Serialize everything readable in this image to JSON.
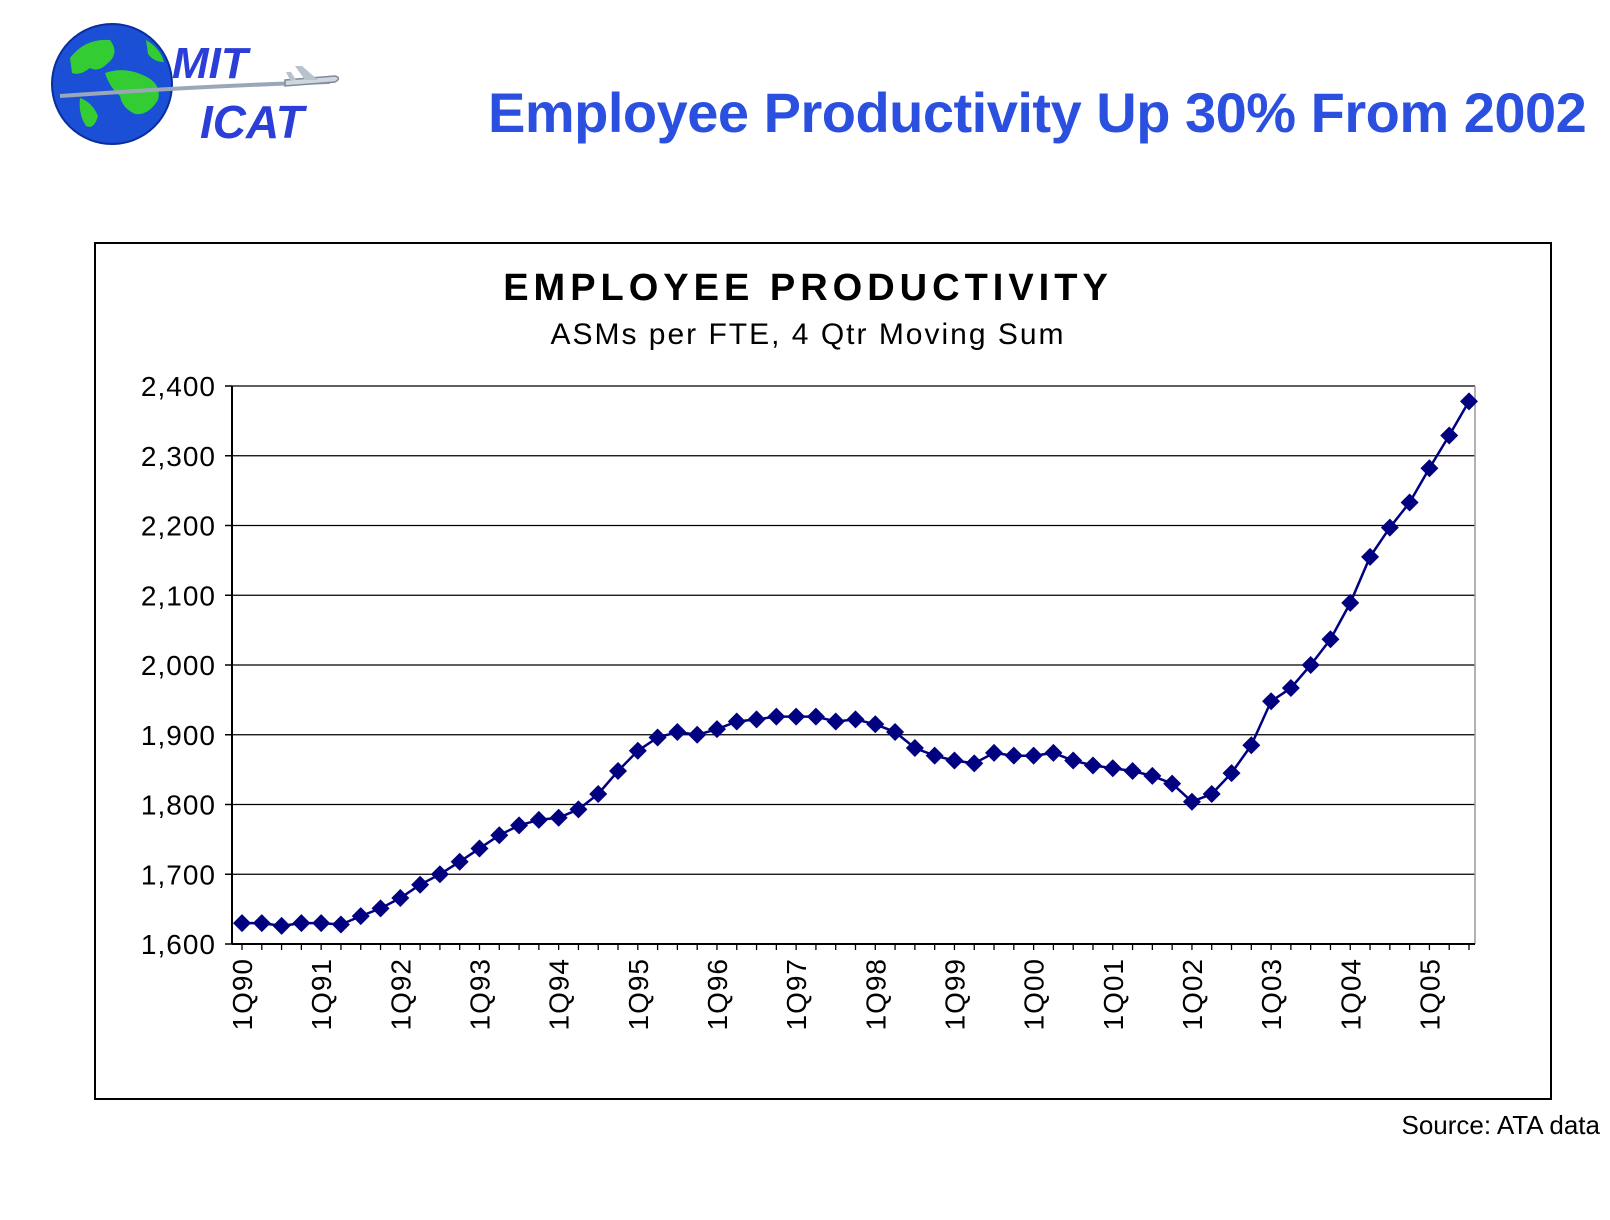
{
  "header": {
    "title": "Employee Productivity Up 30% From 2002",
    "logo_line1": "MIT",
    "logo_line2": "ICAT"
  },
  "source": "Source: ATA data",
  "colors": {
    "title_blue": "#2b50e0",
    "series": "#000080",
    "logo_text": "#2b3fd8",
    "globe_water": "#1a4fd6",
    "globe_land": "#33cc33"
  },
  "chart_data": {
    "type": "line",
    "title": "EMPLOYEE PRODUCTIVITY",
    "subtitle": "ASMs per FTE, 4 Qtr Moving Sum",
    "ylim": [
      1600,
      2400
    ],
    "yticks": [
      1600,
      1700,
      1800,
      1900,
      2000,
      2100,
      2200,
      2300,
      2400
    ],
    "ytick_labels": [
      "1,600",
      "1,700",
      "1,800",
      "1,900",
      "2,000",
      "2,100",
      "2,200",
      "2,300",
      "2,400"
    ],
    "xtick_labels": [
      "1Q90",
      "1Q91",
      "1Q92",
      "1Q93",
      "1Q94",
      "1Q95",
      "1Q96",
      "1Q97",
      "1Q98",
      "1Q99",
      "1Q00",
      "1Q01",
      "1Q02",
      "1Q03",
      "1Q04",
      "1Q05"
    ],
    "grid": true,
    "legend": "none",
    "series": [
      {
        "marker": "diamond",
        "x": [
          "1Q90",
          "2Q90",
          "3Q90",
          "4Q90",
          "1Q91",
          "2Q91",
          "3Q91",
          "4Q91",
          "1Q92",
          "2Q92",
          "3Q92",
          "4Q92",
          "1Q93",
          "2Q93",
          "3Q93",
          "4Q93",
          "1Q94",
          "2Q94",
          "3Q94",
          "4Q94",
          "1Q95",
          "2Q95",
          "3Q95",
          "4Q95",
          "1Q96",
          "2Q96",
          "3Q96",
          "4Q96",
          "1Q97",
          "2Q97",
          "3Q97",
          "4Q97",
          "1Q98",
          "2Q98",
          "3Q98",
          "4Q98",
          "1Q99",
          "2Q99",
          "3Q99",
          "4Q99",
          "1Q00",
          "2Q00",
          "3Q00",
          "4Q00",
          "1Q01",
          "2Q01",
          "3Q01",
          "4Q01",
          "1Q02",
          "2Q02",
          "3Q02",
          "4Q02",
          "1Q03",
          "2Q03",
          "3Q03",
          "4Q03",
          "1Q04",
          "2Q04",
          "3Q04",
          "4Q04",
          "1Q05",
          "2Q05",
          "3Q05"
        ],
        "values": [
          1630,
          1630,
          1626,
          1630,
          1630,
          1628,
          1640,
          1651,
          1666,
          1685,
          1700,
          1718,
          1737,
          1756,
          1770,
          1778,
          1781,
          1793,
          1815,
          1848,
          1877,
          1896,
          1904,
          1900,
          1908,
          1919,
          1922,
          1926,
          1926,
          1926,
          1919,
          1922,
          1915,
          1904,
          1881,
          1870,
          1863,
          1859,
          1874,
          1870,
          1870,
          1874,
          1863,
          1856,
          1852,
          1848,
          1841,
          1830,
          1804,
          1815,
          1845,
          1885,
          1948,
          1967,
          2000,
          2037,
          2089,
          2155,
          2197,
          2233,
          2282,
          2329,
          2378
        ]
      }
    ]
  }
}
